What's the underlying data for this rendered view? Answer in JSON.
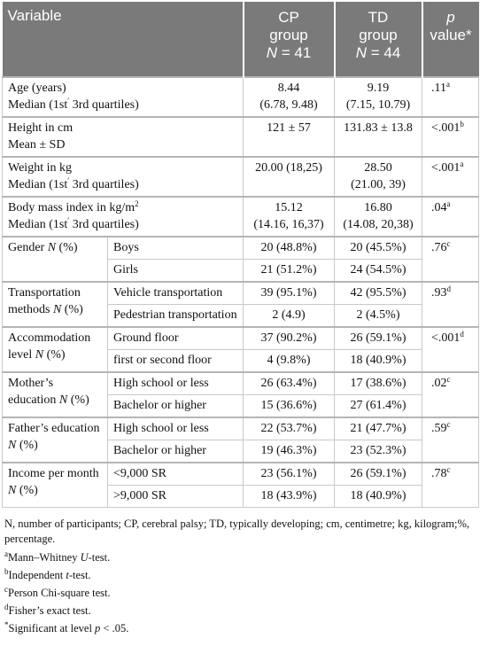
{
  "header": {
    "variable": "Variable",
    "cp_line1": "CP",
    "cp_line2": "group",
    "cp_n_label": "N",
    "cp_n_value": " = 41",
    "td_line1": "TD",
    "td_line2": "group",
    "td_n_label": "N",
    "td_n_value": " = 44",
    "p_line1": "p",
    "p_line2": "value*"
  },
  "rows": [
    {
      "label1": "Age (years)",
      "label2": "Median (1st",
      "label2_sup": "′",
      "label2_tail": " 3rd quartiles)",
      "cp1": "8.44",
      "cp2": "(6.78, 9.48)",
      "td1": "9.19",
      "td2": "(7.15, 10.79)",
      "p": ".11",
      "p_sup": "a"
    },
    {
      "label1": "Height in cm",
      "label2": "Mean ± SD",
      "cp1": "121 ± 57",
      "td1": "131.83 ± 13.8",
      "p": "<.001",
      "p_sup": "b"
    },
    {
      "label1": "Weight in kg",
      "label2": "Median (1st",
      "label2_sup": "′",
      "label2_tail": " 3rd quartiles)",
      "cp1": "20.00 (18,25)",
      "td1": "28.50",
      "td2": "(21.00, 39)",
      "p": "<.001",
      "p_sup": "a"
    },
    {
      "label1": "Body mass index in kg/m",
      "label1_sup": "2",
      "label2": "Median (1st",
      "label2_sup": "′",
      "label2_tail": " 3rd quartiles)",
      "cp1": "15.12",
      "cp2": "(14.16, 16,37)",
      "td1": "16.80",
      "td2": "(14.08, 20,38)",
      "p": ".04",
      "p_sup": "a"
    }
  ],
  "groups": [
    {
      "label_pre": "Gender ",
      "label_ital": "N",
      "label_post": " (%)",
      "p": ".76",
      "p_sup": "c",
      "sub": [
        {
          "name": "Boys",
          "cp": "20 (48.8%)",
          "td": "20 (45.5%)"
        },
        {
          "name": "Girls",
          "cp": "21 (51.2%)",
          "td": "24 (54.5%)"
        }
      ]
    },
    {
      "label_pre": "Transportation methods ",
      "label_ital": "N",
      "label_post": " (%)",
      "p": ".93",
      "p_sup": "d",
      "sub": [
        {
          "name": "Vehicle transportation",
          "cp": "39 (95.1%)",
          "td": "42 (95.5%)"
        },
        {
          "name": "Pedestrian transportation",
          "cp": "2 (4.9)",
          "td": "2 (4.5%)"
        }
      ]
    },
    {
      "label_pre": "Accommodation level ",
      "label_ital": "N",
      "label_post": " (%)",
      "p": "<.001",
      "p_sup": "d",
      "sub": [
        {
          "name": "Ground floor",
          "cp": "37 (90.2%)",
          "td": "26 (59.1%)"
        },
        {
          "name": "first or second floor",
          "cp": "4 (9.8%)",
          "td": "18 (40.9%)"
        }
      ]
    },
    {
      "label_pre": "Mother’s education ",
      "label_ital": "N",
      "label_post": " (%)",
      "p": ".02",
      "p_sup": "c",
      "sub": [
        {
          "name": "High school or less",
          "cp": "26 (63.4%)",
          "td": "17 (38.6%)"
        },
        {
          "name": "Bachelor or higher",
          "cp": "15 (36.6%)",
          "td": "27 (61.4%)"
        }
      ]
    },
    {
      "label_pre": "Father’s education ",
      "label_ital": "N",
      "label_post": " (%)",
      "p": ".59",
      "p_sup": "c",
      "sub": [
        {
          "name": "High school or less",
          "cp": "22 (53.7%)",
          "td": "21 (47.7%)"
        },
        {
          "name": "Bachelor or higher",
          "cp": "19 (46.3%)",
          "td": "23 (52.3%)"
        }
      ]
    },
    {
      "label_pre": "Income per month ",
      "label_ital": "N",
      "label_post": " (%)",
      "p": ".78",
      "p_sup": "c",
      "sub": [
        {
          "name": "<9,000 SR",
          "cp": "23 (56.1%)",
          "td": "26 (59.1%)"
        },
        {
          "name": ">9,000 SR",
          "cp": "18 (43.9%)",
          "td": "18 (40.9%)"
        }
      ]
    }
  ],
  "notes": {
    "abbrev": "N, number of participants; CP, cerebral palsy; TD, typically developing; cm, centimetre; kg, kilogram;%, percentage.",
    "a_mark": "a",
    "a_pre": "Mann–Whitney ",
    "a_ital": "U",
    "a_post": "-test.",
    "b_mark": "b",
    "b_pre": "Independent ",
    "b_ital": "t",
    "b_post": "-test.",
    "c_mark": "c",
    "c_text": "Person Chi-square test.",
    "d_mark": "d",
    "d_text": "Fisher’s exact test.",
    "sig_mark": "*",
    "sig_pre": "Significant at level ",
    "sig_ital": "p",
    "sig_post": " < .05."
  }
}
